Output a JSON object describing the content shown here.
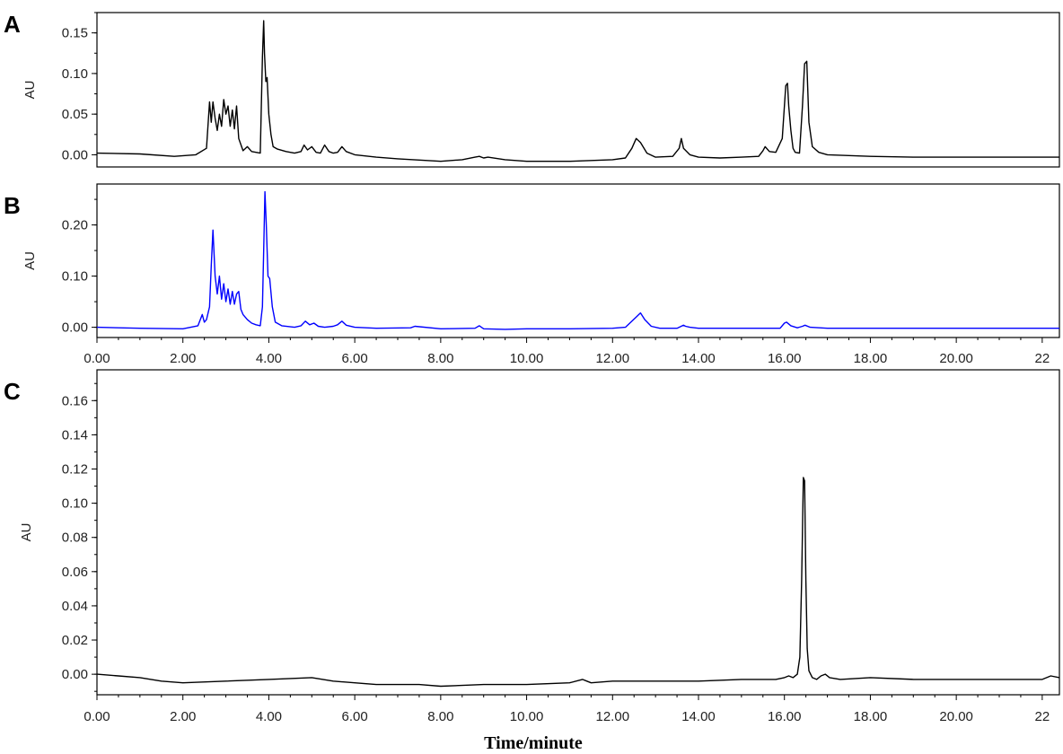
{
  "chart_data": [
    {
      "type": "line",
      "panel_label": "A",
      "ylabel": "AU",
      "ylim": [
        -0.015,
        0.175
      ],
      "xlim": [
        0,
        22.4
      ],
      "yticks": [
        0.0,
        0.05,
        0.1,
        0.15
      ],
      "ytick_labels": [
        "0.00",
        "0.05",
        "0.10",
        "0.15"
      ],
      "xticks": [],
      "xtick_labels": [],
      "series": [
        {
          "color": "#000000",
          "x": [
            0,
            1,
            1.8,
            2.3,
            2.55,
            2.62,
            2.66,
            2.7,
            2.75,
            2.8,
            2.85,
            2.9,
            2.95,
            3.0,
            3.05,
            3.1,
            3.15,
            3.2,
            3.25,
            3.3,
            3.4,
            3.5,
            3.6,
            3.7,
            3.8,
            3.85,
            3.88,
            3.9,
            3.93,
            3.96,
            4.0,
            4.05,
            4.1,
            4.2,
            4.4,
            4.6,
            4.75,
            4.82,
            4.9,
            5.0,
            5.1,
            5.2,
            5.3,
            5.4,
            5.5,
            5.6,
            5.7,
            5.8,
            6.0,
            6.5,
            7,
            8,
            8.5,
            8.8,
            8.9,
            9,
            9.1,
            9.5,
            10,
            11,
            12,
            12.3,
            12.45,
            12.55,
            12.65,
            12.8,
            13,
            13.4,
            13.55,
            13.6,
            13.65,
            13.8,
            14,
            14.5,
            15,
            15.4,
            15.5,
            15.55,
            15.65,
            15.8,
            15.95,
            16.03,
            16.07,
            16.1,
            16.15,
            16.2,
            16.25,
            16.35,
            16.42,
            16.47,
            16.52,
            16.57,
            16.65,
            16.8,
            17,
            18,
            19,
            20,
            21,
            22,
            22.4
          ],
          "y": [
            0.002,
            0.001,
            -0.002,
            0.0,
            0.008,
            0.065,
            0.04,
            0.065,
            0.045,
            0.03,
            0.05,
            0.035,
            0.068,
            0.05,
            0.06,
            0.035,
            0.055,
            0.032,
            0.06,
            0.02,
            0.005,
            0.01,
            0.004,
            0.003,
            0.002,
            0.12,
            0.165,
            0.125,
            0.09,
            0.095,
            0.05,
            0.025,
            0.01,
            0.007,
            0.004,
            0.002,
            0.004,
            0.012,
            0.006,
            0.01,
            0.003,
            0.002,
            0.012,
            0.004,
            0.002,
            0.003,
            0.01,
            0.004,
            0.0,
            -0.003,
            -0.005,
            -0.008,
            -0.006,
            -0.003,
            -0.002,
            -0.004,
            -0.003,
            -0.006,
            -0.008,
            -0.008,
            -0.006,
            -0.004,
            0.008,
            0.02,
            0.015,
            0.002,
            -0.003,
            -0.002,
            0.008,
            0.02,
            0.008,
            0.0,
            -0.003,
            -0.004,
            -0.003,
            -0.002,
            0.005,
            0.01,
            0.004,
            0.003,
            0.02,
            0.085,
            0.088,
            0.06,
            0.03,
            0.008,
            0.003,
            0.002,
            0.06,
            0.112,
            0.115,
            0.04,
            0.01,
            0.003,
            0.0,
            -0.002,
            -0.003,
            -0.003,
            -0.003,
            -0.003,
            -0.003
          ]
        }
      ]
    },
    {
      "type": "line",
      "panel_label": "B",
      "ylabel": "AU",
      "ylim": [
        -0.02,
        0.28
      ],
      "xlim": [
        0,
        22.4
      ],
      "yticks": [
        0.0,
        0.1,
        0.2
      ],
      "ytick_labels": [
        "0.00",
        "0.10",
        "0.20"
      ],
      "xticks": [
        0,
        2,
        4,
        6,
        8,
        10,
        12,
        14,
        16,
        18,
        20,
        22
      ],
      "xtick_labels": [
        "0.00",
        "2.00",
        "4.00",
        "6.00",
        "8.00",
        "10.00",
        "12.00",
        "14.00",
        "16.00",
        "18.00",
        "20.00",
        "22"
      ],
      "series": [
        {
          "color": "#0000ff",
          "x": [
            0,
            1,
            2,
            2.35,
            2.45,
            2.5,
            2.55,
            2.62,
            2.66,
            2.7,
            2.75,
            2.8,
            2.85,
            2.9,
            2.95,
            3.0,
            3.05,
            3.1,
            3.15,
            3.2,
            3.25,
            3.3,
            3.35,
            3.4,
            3.5,
            3.6,
            3.7,
            3.8,
            3.85,
            3.88,
            3.91,
            3.94,
            3.98,
            4.02,
            4.08,
            4.15,
            4.3,
            4.6,
            4.75,
            4.85,
            4.95,
            5.05,
            5.15,
            5.3,
            5.5,
            5.6,
            5.7,
            5.8,
            6.0,
            6.5,
            7.3,
            7.4,
            8,
            8.8,
            8.9,
            9.0,
            9.5,
            10,
            11,
            12,
            12.3,
            12.55,
            12.65,
            12.75,
            12.9,
            13.1,
            13.5,
            13.65,
            13.7,
            13.8,
            14,
            15,
            15.9,
            16.0,
            16.05,
            16.15,
            16.3,
            16.42,
            16.48,
            16.6,
            17,
            18,
            19,
            20,
            21,
            22,
            22.4
          ],
          "y": [
            0.0,
            -0.002,
            -0.003,
            0.003,
            0.025,
            0.01,
            0.015,
            0.04,
            0.12,
            0.19,
            0.1,
            0.065,
            0.1,
            0.055,
            0.085,
            0.05,
            0.075,
            0.045,
            0.07,
            0.045,
            0.065,
            0.07,
            0.035,
            0.025,
            0.015,
            0.008,
            0.005,
            0.003,
            0.04,
            0.15,
            0.265,
            0.2,
            0.1,
            0.095,
            0.04,
            0.01,
            0.003,
            0.0,
            0.003,
            0.012,
            0.005,
            0.008,
            0.002,
            0.0,
            0.002,
            0.005,
            0.012,
            0.004,
            0.0,
            -0.002,
            -0.001,
            0.002,
            -0.003,
            -0.002,
            0.003,
            -0.003,
            -0.004,
            -0.003,
            -0.003,
            -0.002,
            0.0,
            0.02,
            0.028,
            0.015,
            0.002,
            -0.002,
            -0.002,
            0.004,
            0.002,
            0.0,
            -0.002,
            -0.002,
            -0.002,
            0.008,
            0.01,
            0.003,
            -0.001,
            0.002,
            0.004,
            0.0,
            -0.002,
            -0.002,
            -0.002,
            -0.002,
            -0.002,
            -0.002,
            -0.002
          ]
        }
      ]
    },
    {
      "type": "line",
      "panel_label": "C",
      "ylabel": "AU",
      "ylim": [
        -0.012,
        0.178
      ],
      "xlim": [
        0,
        22.4
      ],
      "yticks": [
        0.0,
        0.02,
        0.04,
        0.06,
        0.08,
        0.1,
        0.12,
        0.14,
        0.16
      ],
      "ytick_labels": [
        "0.00",
        "0.02",
        "0.04",
        "0.06",
        "0.08",
        "0.10",
        "0.12",
        "0.14",
        "0.16"
      ],
      "xticks": [
        0,
        2,
        4,
        6,
        8,
        10,
        12,
        14,
        16,
        18,
        20,
        22
      ],
      "xtick_labels": [
        "0.00",
        "2.00",
        "4.00",
        "6.00",
        "8.00",
        "10.00",
        "12.00",
        "14.00",
        "16.00",
        "18.00",
        "20.00",
        "22"
      ],
      "xlabel": "Time/minute",
      "series": [
        {
          "color": "#000000",
          "x": [
            0,
            0.5,
            1,
            1.5,
            2,
            3,
            4,
            5,
            5.5,
            6,
            6.5,
            7,
            7.5,
            8,
            9,
            10,
            11,
            11.3,
            11.4,
            11.5,
            12,
            13,
            14,
            15,
            15.8,
            16.0,
            16.1,
            16.2,
            16.3,
            16.36,
            16.4,
            16.44,
            16.47,
            16.5,
            16.53,
            16.57,
            16.65,
            16.75,
            16.85,
            16.95,
            17.05,
            17.3,
            18,
            19,
            20,
            21,
            22,
            22.2,
            22.4
          ],
          "y": [
            0.0,
            -0.001,
            -0.002,
            -0.004,
            -0.005,
            -0.004,
            -0.003,
            -0.002,
            -0.004,
            -0.005,
            -0.006,
            -0.006,
            -0.006,
            -0.007,
            -0.006,
            -0.006,
            -0.005,
            -0.003,
            -0.004,
            -0.005,
            -0.004,
            -0.004,
            -0.004,
            -0.003,
            -0.003,
            -0.002,
            -0.001,
            -0.002,
            0.0,
            0.01,
            0.055,
            0.115,
            0.113,
            0.055,
            0.015,
            0.002,
            -0.002,
            -0.003,
            -0.001,
            0.0,
            -0.002,
            -0.003,
            -0.002,
            -0.003,
            -0.003,
            -0.003,
            -0.003,
            -0.001,
            -0.002
          ]
        }
      ]
    }
  ]
}
